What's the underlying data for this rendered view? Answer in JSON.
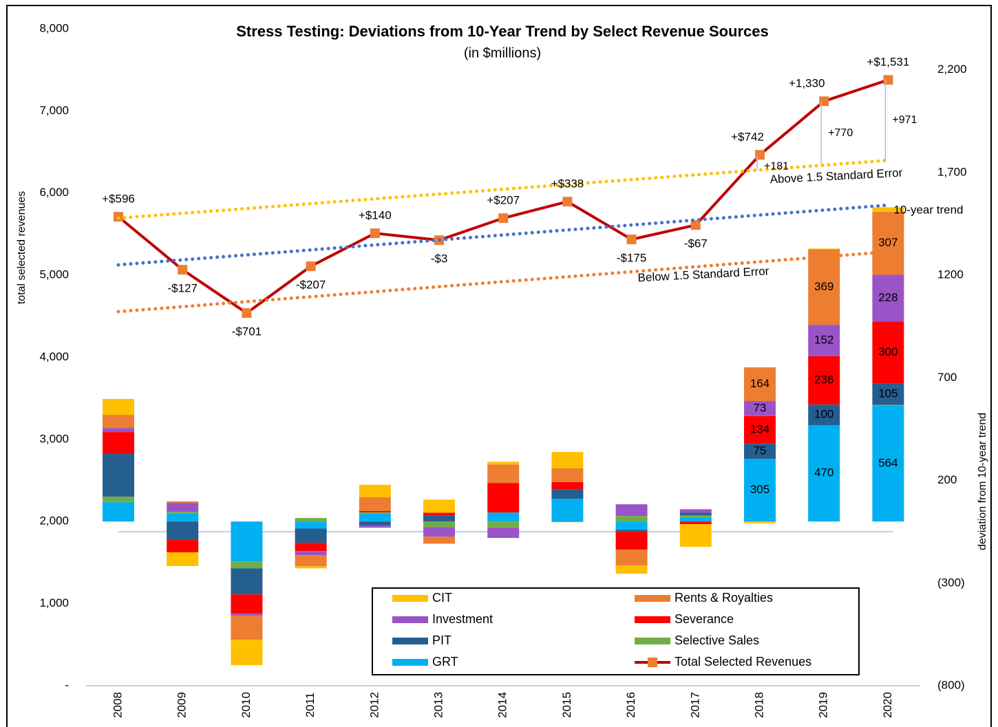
{
  "chart_data": {
    "type": "combo",
    "title": "Stress Testing: Deviations from 10-Year Trend by Select Revenue Sources",
    "subtitle": "(in $millions)",
    "ylabel": "total selected revenues",
    "y2label": "deviation from 10-year trend",
    "categories": [
      "2008",
      "2009",
      "2010",
      "2011",
      "2012",
      "2013",
      "2014",
      "2015",
      "2016",
      "2017",
      "2018",
      "2019",
      "2020"
    ],
    "ylim": [
      0,
      8000
    ],
    "yticks": [
      {
        "value": 0,
        "label": "-"
      },
      {
        "value": 1000,
        "label": "1,000"
      },
      {
        "value": 2000,
        "label": "2,000"
      },
      {
        "value": 3000,
        "label": "3,000"
      },
      {
        "value": 4000,
        "label": "4,000"
      },
      {
        "value": 5000,
        "label": "5,000"
      },
      {
        "value": 6000,
        "label": "6,000"
      },
      {
        "value": 7000,
        "label": "7,000"
      },
      {
        "value": 8000,
        "label": "8,000"
      }
    ],
    "y2lim": [
      -800,
      2400
    ],
    "y2ticks": [
      {
        "value": -800,
        "label": "(800)"
      },
      {
        "value": -300,
        "label": "(300)"
      },
      200,
      700,
      1200,
      {
        "value": 1700,
        "label": "1,700"
      },
      {
        "value": 2200,
        "label": "2,200"
      }
    ],
    "data_labels": [
      false,
      false,
      false,
      false,
      false,
      false,
      false,
      false,
      false,
      false,
      true,
      true,
      true
    ],
    "series": [
      {
        "name": "CIT",
        "type": "bar",
        "axis": "y2",
        "color": "#ffc000",
        "values": [
          77,
          -67,
          -124,
          -10,
          60,
          64,
          13,
          80,
          -40,
          -110,
          -9,
          3,
          22
        ]
      },
      {
        "name": "Rents & Royalties",
        "type": "bar",
        "axis": "y2",
        "color": "#ed7d31",
        "values": [
          64,
          7,
          -117,
          -54,
          67,
          -34,
          90,
          67,
          -77,
          0,
          164,
          369,
          307
        ]
      },
      {
        "name": "Investment",
        "type": "bar",
        "axis": "y2",
        "color": "#9954c8",
        "values": [
          20,
          44,
          -10,
          -20,
          -10,
          -47,
          -50,
          0,
          57,
          17,
          73,
          152,
          228
        ]
      },
      {
        "name": "Severance",
        "type": "bar",
        "axis": "y2",
        "color": "#ff0000",
        "values": [
          107,
          -60,
          -94,
          -40,
          7,
          13,
          144,
          34,
          -87,
          -13,
          134,
          236,
          300
        ]
      },
      {
        "name": "PIT",
        "type": "bar",
        "axis": "y2",
        "color": "#255e91",
        "values": [
          208,
          -90,
          -127,
          -70,
          -20,
          30,
          0,
          47,
          -10,
          13,
          75,
          100,
          105
        ]
      },
      {
        "name": "Selective Sales",
        "type": "bar",
        "axis": "y2",
        "color": "#70ad47",
        "values": [
          27,
          7,
          -34,
          17,
          5,
          -27,
          -30,
          -3,
          27,
          10,
          0,
          0,
          5
        ]
      },
      {
        "name": "GRT",
        "type": "bar",
        "axis": "y2",
        "color": "#00b0f0",
        "values": [
          94,
          40,
          -194,
          -34,
          40,
          0,
          44,
          111,
          -40,
          20,
          305,
          470,
          564
        ]
      },
      {
        "name": "Total Selected Revenues",
        "type": "line",
        "color": "#c00000",
        "marker_color": "#ed7d31",
        "values": [
          5712,
          5067,
          4539,
          5109,
          5511,
          5427,
          5695,
          5896,
          5436,
          5611,
          6466,
          7119,
          7379
        ]
      },
      {
        "name": "10-year trend",
        "type": "line",
        "style": "dotted",
        "color": "#4472c4",
        "values": [
          5126,
          5187,
          5247,
          5308,
          5369,
          5429,
          5490,
          5551,
          5611,
          5672,
          5733,
          5793,
          5854
        ]
      },
      {
        "name": "Above 1.5 Standard Error",
        "type": "line",
        "style": "dotted",
        "color": "#ffc000",
        "values": [
          5695,
          5754,
          5812,
          5871,
          5930,
          5988,
          6047,
          6106,
          6164,
          6223,
          6282,
          6340,
          6399
        ]
      },
      {
        "name": "Below 1.5 Standard Error",
        "type": "line",
        "style": "dotted",
        "color": "#ed7d31",
        "values": [
          4556,
          4617,
          4678,
          4738,
          4799,
          4860,
          4921,
          4981,
          5042,
          5103,
          5164,
          5224,
          5285
        ]
      }
    ],
    "deviation_labels": [
      "+$596",
      "-$127",
      "-$701",
      "-$207",
      "+$140",
      "-$3",
      "+$207",
      "+$338",
      "-$175",
      "-$67",
      "+$742",
      "+1,330",
      "+$1,531"
    ],
    "gap_labels": [
      null,
      null,
      null,
      null,
      null,
      null,
      null,
      null,
      null,
      null,
      "+181",
      "+770",
      "+971"
    ]
  }
}
